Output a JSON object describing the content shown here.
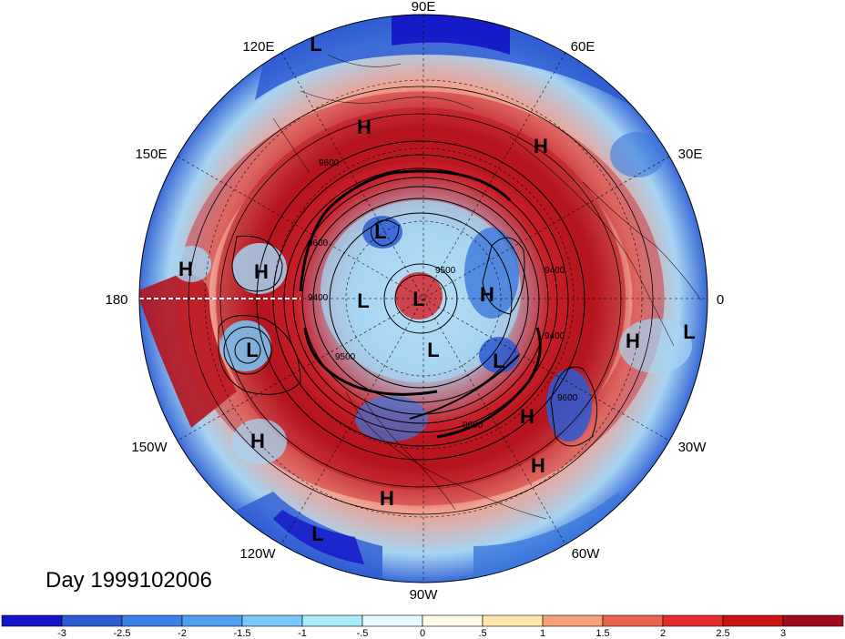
{
  "title_text": "Day 1999102006",
  "longitude_labels": [
    "90E",
    "60E",
    "30E",
    "0",
    "30W",
    "60W",
    "90W",
    "120W",
    "150W",
    "180",
    "150E",
    "120E"
  ],
  "pressure_systems": [
    {
      "type": "L"
    },
    {
      "type": "H"
    },
    {
      "type": "H"
    },
    {
      "type": "H"
    },
    {
      "type": "H"
    },
    {
      "type": "L"
    },
    {
      "type": "L"
    },
    {
      "type": "L"
    },
    {
      "type": "H"
    },
    {
      "type": "L"
    },
    {
      "type": "L"
    },
    {
      "type": "H"
    },
    {
      "type": "L"
    },
    {
      "type": "H"
    },
    {
      "type": "H"
    },
    {
      "type": "H"
    },
    {
      "type": "H"
    },
    {
      "type": "L"
    }
  ],
  "contour_labels": [
    "9600",
    "9400",
    "9500",
    "9400",
    "9600",
    "9600",
    "9400",
    "9500",
    "9600"
  ],
  "colorbar": {
    "ticks": [
      "-3",
      "-2.5",
      "-2",
      "-1.5",
      "-1",
      "-.5",
      "0",
      ".5",
      "1",
      "1.5",
      "2",
      "2.5",
      "3"
    ],
    "colors": [
      "#1414c8",
      "#2d5ad2",
      "#3c82e6",
      "#50a0f0",
      "#78c8fa",
      "#aaebfa",
      "#e6faff",
      "#fffae6",
      "#ffe6aa",
      "#f5a078",
      "#eb6450",
      "#e62d2d",
      "#c81414",
      "#a00a1e"
    ]
  },
  "colors": {
    "ocean_deep_red": "#b4141e",
    "red": "#d2323c",
    "light_red": "#f08c82",
    "light_blue": "#a0d2f0",
    "blue": "#3c78dc",
    "deep_blue": "#1e32c8",
    "pale": "#e6f5fa"
  }
}
